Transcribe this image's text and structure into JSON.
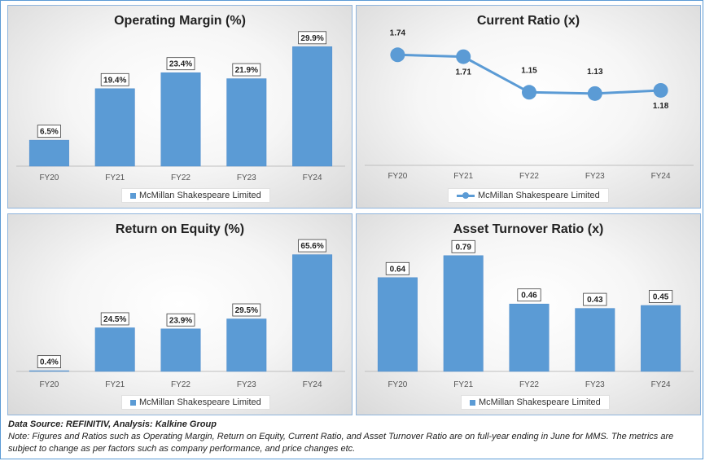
{
  "chart_data": [
    {
      "type": "bar",
      "title": "Operating Margin (%)",
      "categories": [
        "FY20",
        "FY21",
        "FY22",
        "FY23",
        "FY24"
      ],
      "series": [
        {
          "name": "McMillan Shakespeare Limited",
          "values": [
            6.5,
            19.4,
            23.4,
            21.9,
            29.9
          ]
        }
      ],
      "data_labels": [
        "6.5%",
        "19.4%",
        "23.4%",
        "21.9%",
        "29.9%"
      ],
      "ylim": [
        0,
        32
      ],
      "legend": "bottom",
      "grid": false,
      "color": "#5b9bd5"
    },
    {
      "type": "line",
      "title": "Current Ratio (x)",
      "categories": [
        "FY20",
        "FY21",
        "FY22",
        "FY23",
        "FY24"
      ],
      "series": [
        {
          "name": "McMillan Shakespeare Limited",
          "values": [
            1.74,
            1.71,
            1.15,
            1.13,
            1.18
          ]
        }
      ],
      "data_labels": [
        "1.74",
        "1.71",
        "1.15",
        "1.13",
        "1.18"
      ],
      "ylim": [
        0,
        2.0
      ],
      "legend": "bottom",
      "grid": false,
      "color": "#5b9bd5"
    },
    {
      "type": "bar",
      "title": "Return on Equity (%)",
      "categories": [
        "FY20",
        "FY21",
        "FY22",
        "FY23",
        "FY24"
      ],
      "series": [
        {
          "name": "McMillan Shakespeare Limited",
          "values": [
            0.4,
            24.5,
            23.9,
            29.5,
            65.6
          ]
        }
      ],
      "data_labels": [
        "0.4%",
        "24.5%",
        "23.9%",
        "29.5%",
        "65.6%"
      ],
      "ylim": [
        0,
        70
      ],
      "legend": "bottom",
      "grid": false,
      "color": "#5b9bd5"
    },
    {
      "type": "bar",
      "title": "Asset Turnover Ratio (x)",
      "categories": [
        "FY20",
        "FY21",
        "FY22",
        "FY23",
        "FY24"
      ],
      "series": [
        {
          "name": "McMillan Shakespeare Limited",
          "values": [
            0.64,
            0.79,
            0.46,
            0.43,
            0.45
          ]
        }
      ],
      "data_labels": [
        "0.64",
        "0.79",
        "0.46",
        "0.43",
        "0.45"
      ],
      "ylim": [
        0,
        0.85
      ],
      "legend": "bottom",
      "grid": false,
      "color": "#5b9bd5"
    }
  ],
  "footer": {
    "source": "Data Source: REFINITIV, Analysis: Kalkine Group",
    "note": "Note: Figures and Ratios such as Operating Margin, Return on Equity, Current Ratio, and Asset Turnover Ratio are on full-year ending in June for MMS. The metrics are subject to change as per factors such as company performance, and price changes etc."
  }
}
